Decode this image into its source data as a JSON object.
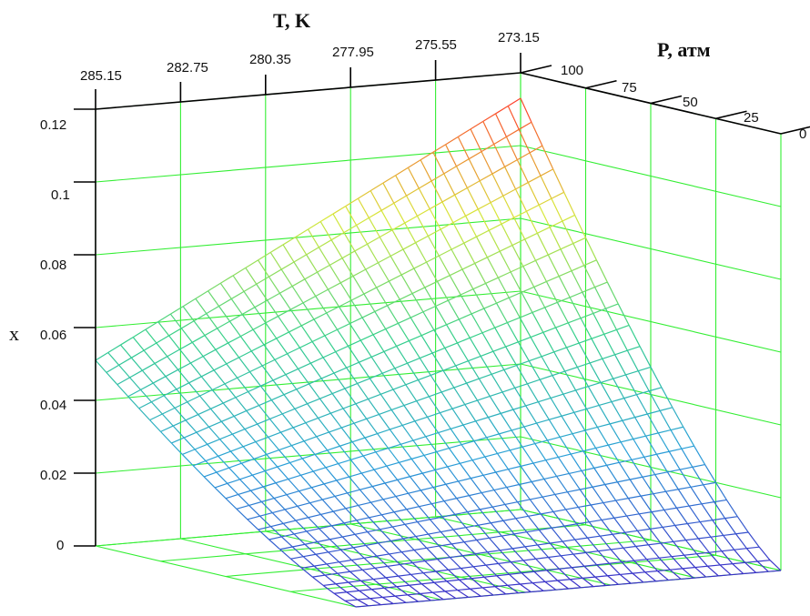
{
  "chart_data": {
    "type": "surface",
    "title": "",
    "t_axis": {
      "label": "T, K",
      "ticks": [
        "285.15",
        "282.75",
        "280.35",
        "277.95",
        "275.55",
        "273.15"
      ]
    },
    "p_axis": {
      "label": "P, атм",
      "ticks": [
        "100",
        "75",
        "50",
        "25",
        "0"
      ]
    },
    "x_axis": {
      "label": "x",
      "ticks": [
        "0.12",
        "0.1",
        "0.08",
        "0.06",
        "0.04",
        "0.02",
        "0"
      ],
      "range": [
        0,
        0.12
      ]
    },
    "t_range": [
      273.15,
      285.15
    ],
    "p_range": [
      0,
      100
    ],
    "grid": true,
    "grid_color": "#33ee33",
    "colormap": [
      "#3b2fc8",
      "#2aa0d8",
      "#35d08a",
      "#d8e83a",
      "#ff3a2a"
    ],
    "surface_samples": [
      {
        "T": 285.15,
        "P": 100,
        "x": 0.051
      },
      {
        "T": 273.15,
        "P": 100,
        "x": 0.113
      },
      {
        "T": 285.15,
        "P": 50,
        "x": 0.013
      },
      {
        "T": 273.15,
        "P": 50,
        "x": 0.06
      },
      {
        "T": 285.15,
        "P": 0,
        "x": 0.0
      },
      {
        "T": 273.15,
        "P": 0,
        "x": 0.0
      }
    ]
  }
}
